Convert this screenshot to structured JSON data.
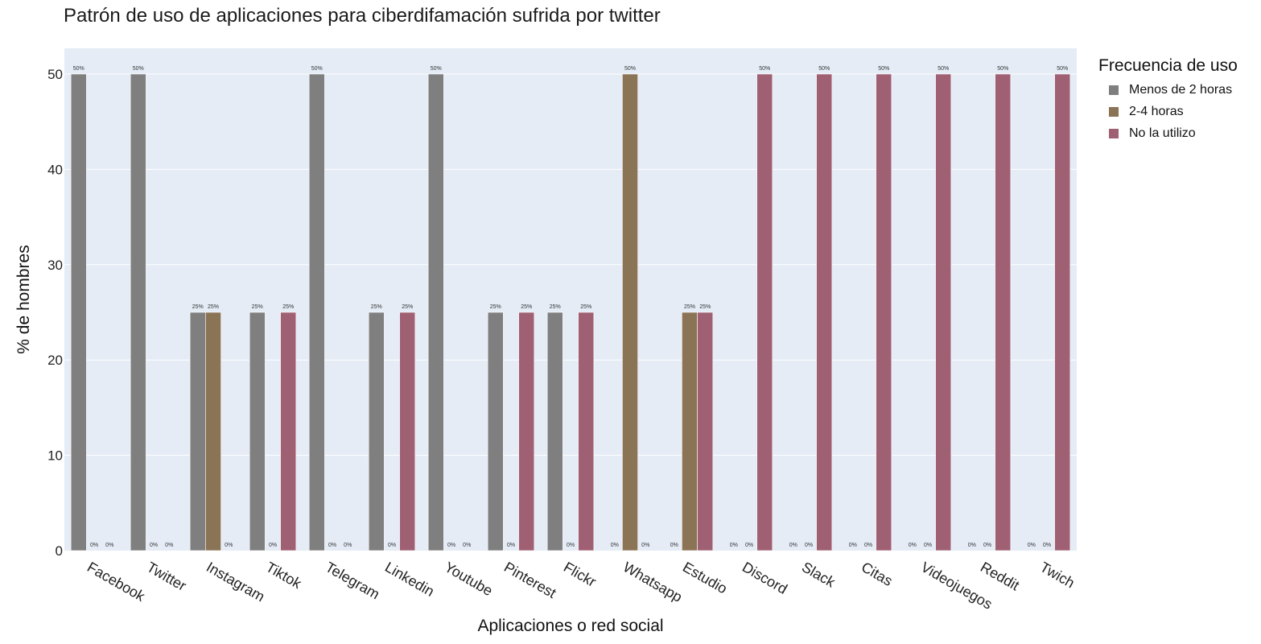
{
  "chart_data": {
    "type": "bar",
    "title": "Patrón de uso de aplicaciones para ciberdifamación sufrida por twitter",
    "xlabel": "Aplicaciones o red social",
    "ylabel": "% de hombres",
    "ylim": [
      0,
      52.7
    ],
    "yticks": [
      "0",
      "10",
      "20",
      "30",
      "40",
      "50"
    ],
    "grid": true,
    "legend_title": "Frecuencia de uso",
    "legend_position": "right",
    "categories": [
      "Facebook",
      "Twitter",
      "Instagram",
      "Tiktok",
      "Telegram",
      "Linkedin",
      "Youtube",
      "Pinterest",
      "Flickr",
      "Whatsapp",
      "Estudio",
      "Discord",
      "Slack",
      "Citas",
      "Videojuegos",
      "Reddit",
      "Twich"
    ],
    "series": [
      {
        "name": "Menos de 2 horas",
        "color": "#7f7f7f",
        "values": [
          50,
          50,
          25,
          25,
          50,
          25,
          50,
          25,
          25,
          0,
          0,
          0,
          0,
          0,
          0,
          0,
          0
        ],
        "labels": [
          "50%",
          "50%",
          "25%",
          "25%",
          "50%",
          "25%",
          "50%",
          "25%",
          "25%",
          "0%",
          "0%",
          "0%",
          "0%",
          "0%",
          "0%",
          "0%",
          "0%"
        ]
      },
      {
        "name": "2-4 horas",
        "color": "#8b7355",
        "values": [
          0,
          0,
          25,
          0,
          0,
          0,
          0,
          0,
          0,
          50,
          25,
          0,
          0,
          0,
          0,
          0,
          0
        ],
        "labels": [
          "0%",
          "0%",
          "25%",
          "0%",
          "0%",
          "0%",
          "0%",
          "0%",
          "0%",
          "50%",
          "25%",
          "0%",
          "0%",
          "0%",
          "0%",
          "0%",
          "0%"
        ]
      },
      {
        "name": "No la utilizo",
        "color": "#a06073",
        "values": [
          0,
          0,
          0,
          25,
          0,
          25,
          0,
          25,
          25,
          0,
          25,
          50,
          50,
          50,
          50,
          50,
          50
        ],
        "labels": [
          "0%",
          "0%",
          "0%",
          "25%",
          "0%",
          "25%",
          "0%",
          "25%",
          "25%",
          "0%",
          "25%",
          "50%",
          "50%",
          "50%",
          "50%",
          "50%",
          "50%"
        ]
      }
    ],
    "colors": {
      "plot_background": "#e5ecf6",
      "grid": "#ffffff"
    }
  }
}
